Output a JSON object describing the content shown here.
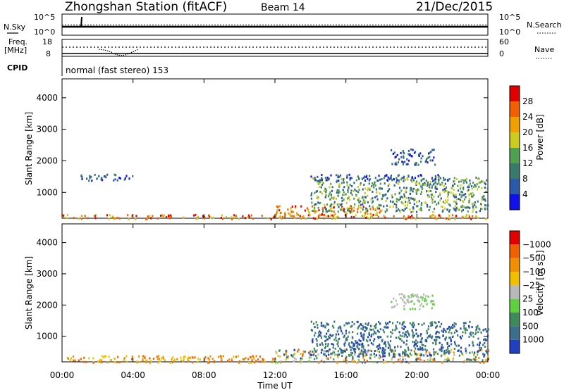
{
  "header": {
    "station": "Zhongshan Station (fitACF)",
    "beam": "Beam 14",
    "date": "21/Dec/2015"
  },
  "top_panels": {
    "noise": {
      "left_label": "N.Sky",
      "left_ticks": [
        "10^5",
        "10^0"
      ],
      "right_ticks": [
        "10^5",
        "10^0"
      ],
      "right_label": "N.Search"
    },
    "freq": {
      "left_label_1": "Freq.",
      "left_label_2": "[MHz]",
      "left_ticks": [
        "18",
        "8"
      ],
      "right_ticks": [
        "60",
        "0"
      ],
      "right_label": "Nave"
    },
    "cpid": {
      "label": "CPID",
      "text": "normal (fast stereo) 153"
    }
  },
  "chart_data": [
    {
      "type": "heatmap",
      "panel": "power",
      "ylabel": "Slant Range [km]",
      "yticks": [
        "1000",
        "2000",
        "3000",
        "4000"
      ],
      "ylim": [
        180,
        4600
      ],
      "xticks": [
        "00:00",
        "04:00",
        "08:00",
        "12:00",
        "16:00",
        "20:00",
        "00:00"
      ],
      "xlim": [
        0,
        24
      ],
      "colorbar": {
        "label": "Power [dB]",
        "tick_labels": [
          "4",
          "8",
          "12",
          "16",
          "20",
          "24",
          "28"
        ],
        "colors": [
          "#1010e8",
          "#2c5aa8",
          "#3a7a6a",
          "#4fa04f",
          "#cccc20",
          "#f0a000",
          "#f06000",
          "#e00000"
        ]
      },
      "echo_regions": [
        {
          "t": [
            0,
            24
          ],
          "r": [
            180,
            320
          ],
          "level": "high"
        },
        {
          "t": [
            12,
            18
          ],
          "r": [
            300,
            600
          ],
          "level": "high"
        },
        {
          "t": [
            14,
            24
          ],
          "r": [
            400,
            1500
          ],
          "level": "mid"
        },
        {
          "t": [
            18.5,
            21
          ],
          "r": [
            1900,
            2400
          ],
          "level": "low"
        },
        {
          "t": [
            1,
            4
          ],
          "r": [
            1400,
            1600
          ],
          "level": "low"
        },
        {
          "t": [
            14,
            22
          ],
          "r": [
            1400,
            1600
          ],
          "level": "low"
        }
      ]
    },
    {
      "type": "heatmap",
      "panel": "velocity",
      "ylabel": "Slant Range [km]",
      "yticks": [
        "1000",
        "2000",
        "3000",
        "4000"
      ],
      "ylim": [
        180,
        4600
      ],
      "xticks": [
        "00:00",
        "04:00",
        "08:00",
        "12:00",
        "16:00",
        "20:00",
        "00:00"
      ],
      "xlabel": "Time UT",
      "xlim": [
        0,
        24
      ],
      "colorbar": {
        "label": "Velocity [m s⁻¹]",
        "tick_labels": [
          "1000",
          "500",
          "100",
          "25",
          "−25",
          "−100",
          "−500",
          "−1000"
        ],
        "colors": [
          "#2040c0",
          "#3a6e8a",
          "#3f8a5a",
          "#60d040",
          "#b8b8b8",
          "#f0c000",
          "#f09000",
          "#f06000",
          "#e00000"
        ]
      },
      "echo_regions": [
        {
          "t": [
            0,
            12
          ],
          "r": [
            180,
            400
          ],
          "level": "neg"
        },
        {
          "t": [
            12,
            24
          ],
          "r": [
            180,
            600
          ],
          "level": "mixed"
        },
        {
          "t": [
            14,
            24
          ],
          "r": [
            400,
            1500
          ],
          "level": "pos"
        },
        {
          "t": [
            18.5,
            21
          ],
          "r": [
            1900,
            2400
          ],
          "level": "zero"
        }
      ]
    }
  ],
  "axis_title_x": "Time UT"
}
